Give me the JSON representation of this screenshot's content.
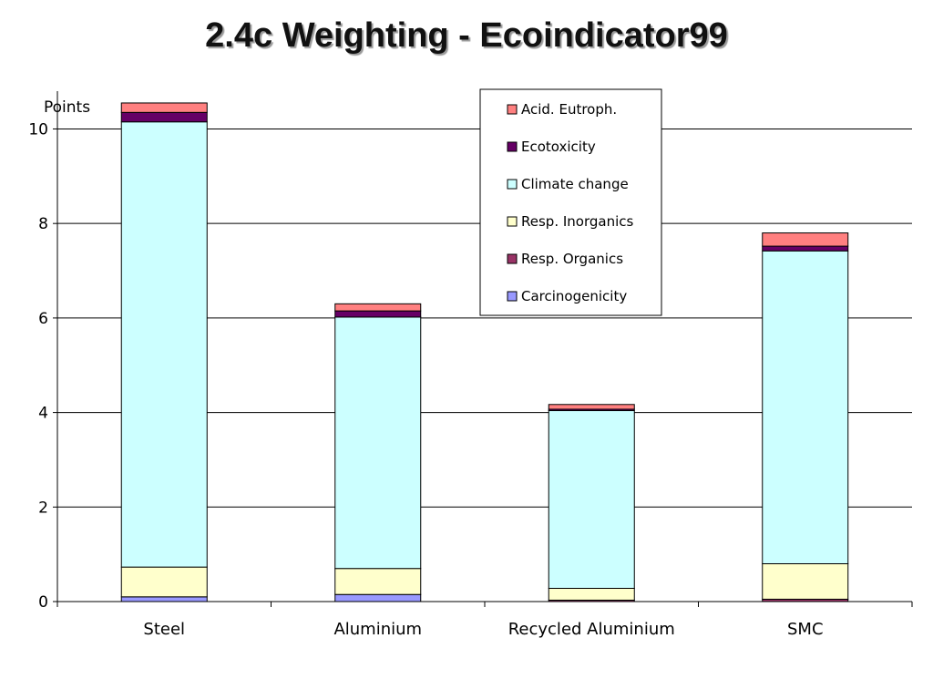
{
  "slide": {
    "title": "2.4c Weighting - Ecoindicator99"
  },
  "chart_data": {
    "type": "bar",
    "stacked": true,
    "categories": [
      "Steel",
      "Aluminium",
      "Recycled Aluminium",
      "SMC"
    ],
    "ylabel": "Points",
    "ylim": [
      0,
      10.8
    ],
    "yticks": [
      0,
      2,
      4,
      6,
      8,
      10
    ],
    "grid": true,
    "legend_position": "top-right",
    "series": [
      {
        "name": "Carcinogenicity",
        "color": "#9999ff",
        "values": [
          0.1,
          0.15,
          0.0,
          0.0
        ]
      },
      {
        "name": "Resp. Organics",
        "color": "#993366",
        "values": [
          0.0,
          0.0,
          0.03,
          0.05
        ]
      },
      {
        "name": "Resp. Inorganics",
        "color": "#ffffcc",
        "values": [
          0.63,
          0.55,
          0.25,
          0.75
        ]
      },
      {
        "name": "Climate change",
        "color": "#ccffff",
        "values": [
          9.42,
          5.32,
          3.76,
          6.62
        ]
      },
      {
        "name": "Ecotoxicity",
        "color": "#660066",
        "values": [
          0.2,
          0.13,
          0.03,
          0.1
        ]
      },
      {
        "name": "Acid. Eutroph.",
        "color": "#ff8080",
        "values": [
          0.2,
          0.15,
          0.1,
          0.28
        ]
      }
    ]
  }
}
